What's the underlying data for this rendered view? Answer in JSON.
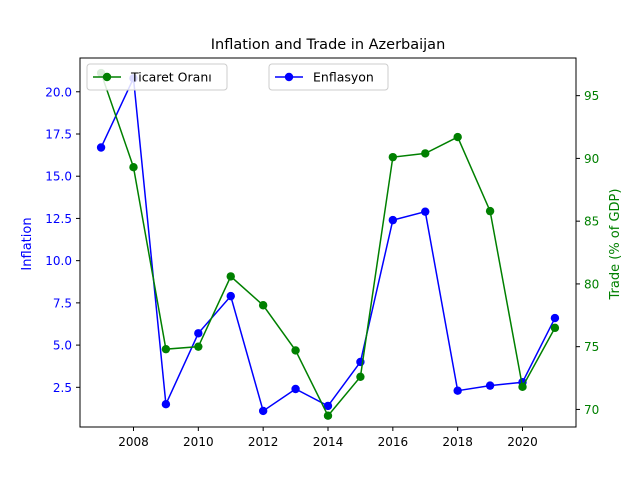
{
  "chart_data": {
    "type": "line",
    "title": "Inflation and Trade in Azerbaijan",
    "xlabel": "",
    "x": [
      2007,
      2008,
      2009,
      2010,
      2011,
      2012,
      2013,
      2014,
      2015,
      2016,
      2017,
      2018,
      2019,
      2020,
      2021
    ],
    "x_ticks": [
      "2008",
      "2010",
      "2012",
      "2014",
      "2016",
      "2018",
      "2020"
    ],
    "left_axis": {
      "label": "Inflation",
      "color": "#0000ff",
      "ylim": [
        0.15,
        22.0
      ],
      "ticks": [
        "2.5",
        "5.0",
        "7.5",
        "10.0",
        "12.5",
        "15.0",
        "17.5",
        "20.0"
      ]
    },
    "right_axis": {
      "label": "Trade (% of GDP)",
      "color": "#008000",
      "ylim": [
        68.6,
        98.0
      ],
      "ticks": [
        "70",
        "75",
        "80",
        "85",
        "90",
        "95"
      ]
    },
    "series": [
      {
        "name": "Enflasyon",
        "axis": "left",
        "color": "#0000ff",
        "values": [
          16.7,
          20.8,
          1.5,
          5.7,
          7.9,
          1.1,
          2.4,
          1.4,
          4.0,
          12.4,
          12.9,
          2.3,
          2.6,
          2.8,
          6.6
        ]
      },
      {
        "name": "Ticaret Oranı",
        "axis": "right",
        "color": "#008000",
        "values": [
          96.8,
          89.3,
          74.8,
          75.0,
          80.6,
          78.3,
          74.7,
          69.5,
          72.6,
          90.1,
          90.4,
          91.7,
          85.8,
          71.8,
          76.5
        ]
      }
    ],
    "legends": [
      {
        "series": "Ticaret Oranı",
        "placement": "upper-left"
      },
      {
        "series": "Enflasyon",
        "placement": "upper-center"
      }
    ],
    "grid": false
  }
}
